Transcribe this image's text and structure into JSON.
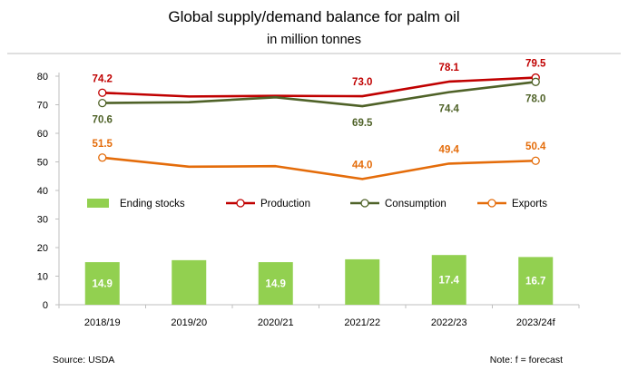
{
  "title": "Global supply/demand balance for palm oil",
  "subtitle": "in million tonnes",
  "source": "Source: USDA",
  "note": "Note: f = forecast",
  "colors": {
    "bars": "#92d050",
    "production": "#c00000",
    "consumption": "#4f6228",
    "exports": "#e46c0a",
    "axis": "#bfbfbf"
  },
  "chart_data": {
    "type": "bar",
    "categories": [
      "2018/19",
      "2019/20",
      "2020/21",
      "2021/22",
      "2022/23",
      "2023/24f"
    ],
    "ylim": [
      0,
      80
    ],
    "yticks": [
      "0",
      "10",
      "20",
      "30",
      "40",
      "50",
      "60",
      "70",
      "80"
    ],
    "grid": false,
    "legend_position": "center",
    "series": [
      {
        "name": "Ending stocks",
        "type": "bar",
        "color": "#92d050",
        "values": [
          14.9,
          15.6,
          14.9,
          15.9,
          17.4,
          16.7
        ],
        "labels": [
          "14.9",
          "",
          "14.9",
          "",
          "17.4",
          "16.7"
        ]
      },
      {
        "name": "Production",
        "type": "line",
        "color": "#c00000",
        "values": [
          74.2,
          72.9,
          73.1,
          73.0,
          78.1,
          79.5
        ],
        "labels": [
          "74.2",
          "",
          "",
          "73.0",
          "78.1",
          "79.5"
        ]
      },
      {
        "name": "Consumption",
        "type": "line",
        "color": "#4f6228",
        "values": [
          70.6,
          70.9,
          72.6,
          69.5,
          74.4,
          78.0
        ],
        "labels": [
          "70.6",
          "",
          "",
          "69.5",
          "74.4",
          "78.0"
        ]
      },
      {
        "name": "Exports",
        "type": "line",
        "color": "#e46c0a",
        "values": [
          51.5,
          48.3,
          48.5,
          44.0,
          49.4,
          50.4
        ],
        "labels": [
          "51.5",
          "",
          "",
          "44.0",
          "49.4",
          "50.4"
        ]
      }
    ]
  }
}
